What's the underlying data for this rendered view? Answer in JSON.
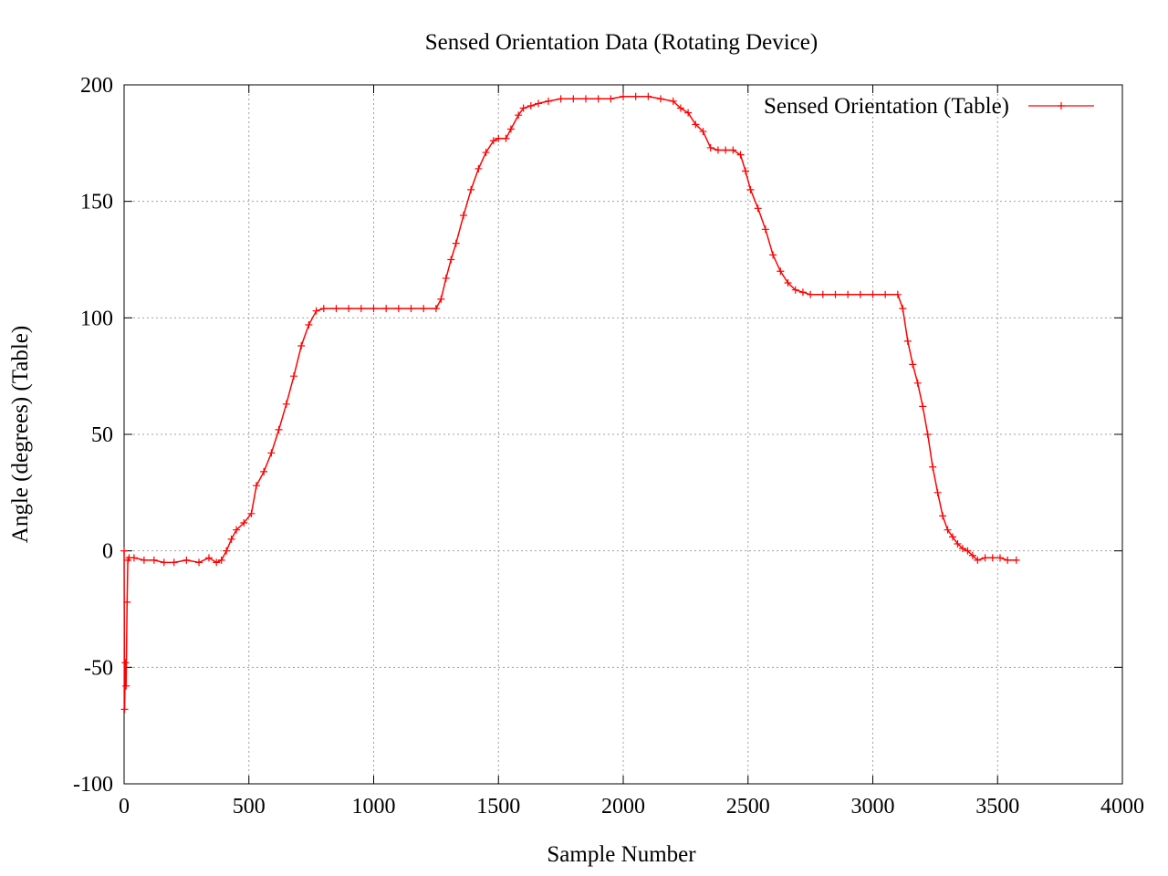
{
  "chart_data": {
    "type": "line",
    "title": "Sensed Orientation Data (Rotating Device)",
    "xlabel": "Sample Number",
    "ylabel": "Angle (degrees) (Table)",
    "xlim": [
      0,
      4000
    ],
    "ylim": [
      -100,
      200
    ],
    "xticks": [
      "0",
      "500",
      "1000",
      "1500",
      "2000",
      "2500",
      "3000",
      "3500",
      "4000"
    ],
    "yticks": [
      "200",
      "150",
      "100",
      "50",
      "0",
      "-50",
      "-100"
    ],
    "grid": true,
    "legend_position": "top-right",
    "marker": "plus",
    "series": [
      {
        "name": "Sensed Orientation (Table)",
        "color": "#ff0000",
        "x": [
          0,
          2,
          5,
          8,
          12,
          15,
          20,
          40,
          80,
          120,
          160,
          200,
          250,
          300,
          340,
          370,
          390,
          410,
          430,
          450,
          480,
          510,
          530,
          560,
          590,
          620,
          650,
          680,
          710,
          740,
          770,
          800,
          850,
          900,
          950,
          1000,
          1050,
          1100,
          1150,
          1200,
          1250,
          1270,
          1290,
          1310,
          1330,
          1360,
          1390,
          1420,
          1450,
          1480,
          1500,
          1530,
          1550,
          1580,
          1600,
          1630,
          1660,
          1700,
          1750,
          1800,
          1850,
          1900,
          1950,
          2000,
          2050,
          2100,
          2150,
          2200,
          2230,
          2260,
          2290,
          2320,
          2350,
          2380,
          2410,
          2440,
          2470,
          2490,
          2510,
          2540,
          2570,
          2600,
          2630,
          2660,
          2690,
          2720,
          2750,
          2800,
          2850,
          2900,
          2950,
          3000,
          3050,
          3100,
          3120,
          3140,
          3160,
          3180,
          3200,
          3220,
          3240,
          3260,
          3280,
          3300,
          3320,
          3340,
          3360,
          3380,
          3400,
          3420,
          3450,
          3480,
          3510,
          3540,
          3575
        ],
        "y": [
          0,
          -68,
          -48,
          -58,
          -22,
          -4,
          -3,
          -3,
          -4,
          -4,
          -5,
          -5,
          -4,
          -5,
          -3,
          -5,
          -4,
          0,
          5,
          9,
          12,
          16,
          28,
          34,
          42,
          52,
          63,
          75,
          88,
          97,
          103,
          104,
          104,
          104,
          104,
          104,
          104,
          104,
          104,
          104,
          104,
          108,
          117,
          125,
          132,
          144,
          155,
          164,
          171,
          176,
          177,
          177,
          181,
          187,
          190,
          191,
          192,
          193,
          194,
          194,
          194,
          194,
          194,
          195,
          195,
          195,
          194,
          193,
          190,
          188,
          183,
          180,
          173,
          172,
          172,
          172,
          170,
          163,
          155,
          147,
          138,
          127,
          120,
          115,
          112,
          111,
          110,
          110,
          110,
          110,
          110,
          110,
          110,
          110,
          104,
          90,
          80,
          72,
          62,
          50,
          36,
          25,
          15,
          9,
          6,
          3,
          1,
          0,
          -2,
          -4,
          -3,
          -3,
          -3,
          -4,
          -4
        ]
      }
    ]
  }
}
